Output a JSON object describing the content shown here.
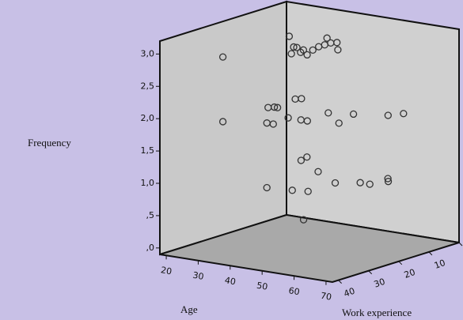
{
  "chart_data": {
    "type": "scatter3d",
    "xlabel": "Age",
    "ylabel": "Work experience",
    "zlabel": "Frequency",
    "x": [
      33,
      33,
      41,
      42,
      45,
      46,
      45,
      49,
      47,
      46,
      42,
      46,
      46,
      47,
      52,
      33,
      33,
      34,
      35,
      43,
      45,
      33,
      34,
      44,
      48,
      50,
      49,
      58,
      55,
      63,
      65,
      43,
      50,
      54,
      43,
      54,
      59,
      62,
      64,
      62,
      31,
      32,
      29
    ],
    "y": [
      37,
      15,
      22,
      22,
      27,
      25,
      23,
      26,
      22,
      19,
      12,
      17,
      15,
      14,
      19,
      37,
      22,
      21,
      21,
      33,
      33,
      13,
      12,
      27,
      27,
      27,
      19,
      25,
      17,
      14,
      11,
      33,
      32,
      31,
      16,
      22,
      19,
      19,
      15,
      13,
      7,
      10,
      6
    ],
    "z": [
      3,
      3,
      3,
      3,
      3,
      3,
      3,
      3,
      3,
      3,
      3,
      3,
      3,
      3,
      3,
      2,
      2,
      2,
      2,
      2,
      2,
      2,
      2,
      2,
      2,
      2,
      2,
      2,
      2,
      2,
      2,
      1,
      1,
      1,
      1,
      1,
      1,
      1,
      1,
      1,
      1,
      1,
      0
    ],
    "xlim": [
      18,
      72
    ],
    "ylim": [
      0,
      42
    ],
    "zlim": [
      -0.1,
      3.2
    ],
    "xticks": [
      20,
      30,
      40,
      50,
      60,
      70
    ],
    "yticks": [
      0,
      10,
      20,
      30,
      40
    ],
    "zticks": [
      {
        "value": 0,
        "label": ",0"
      },
      {
        "value": 0.5,
        "label": ",5"
      },
      {
        "value": 1,
        "label": "1,0"
      },
      {
        "value": 1.5,
        "label": "1,5"
      },
      {
        "value": 2,
        "label": "2,0"
      },
      {
        "value": 2.5,
        "label": "2,5"
      },
      {
        "value": 3,
        "label": "3,0"
      }
    ]
  }
}
